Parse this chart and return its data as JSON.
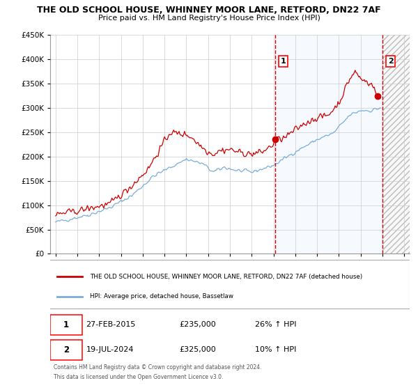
{
  "title": "THE OLD SCHOOL HOUSE, WHINNEY MOOR LANE, RETFORD, DN22 7AF",
  "subtitle": "Price paid vs. HM Land Registry's House Price Index (HPI)",
  "ylim": [
    0,
    450000
  ],
  "yticks": [
    0,
    50000,
    100000,
    150000,
    200000,
    250000,
    300000,
    350000,
    400000,
    450000
  ],
  "red_line_color": "#cc0000",
  "blue_line_color": "#7aaddc",
  "shade_color": "#ddeeff",
  "hatch_color": "#dddddd",
  "legend_line1": "THE OLD SCHOOL HOUSE, WHINNEY MOOR LANE, RETFORD, DN22 7AF (detached house)",
  "legend_line2": "HPI: Average price, detached house, Bassetlaw",
  "point1_x": 2015.15,
  "point1_y": 235000,
  "point2_x": 2024.55,
  "point2_y": 325000,
  "vline2_x": 2025.0,
  "footer1": "Contains HM Land Registry data © Crown copyright and database right 2024.",
  "footer2": "This data is licensed under the Open Government Licence v3.0.",
  "table_row1": [
    "1",
    "27-FEB-2015",
    "£235,000",
    "26% ↑ HPI"
  ],
  "table_row2": [
    "2",
    "19-JUL-2024",
    "£325,000",
    "10% ↑ HPI"
  ],
  "xlim": [
    1994.5,
    2027.5
  ],
  "xticks": [
    1995,
    1997,
    1999,
    2001,
    2003,
    2005,
    2007,
    2009,
    2011,
    2013,
    2015,
    2017,
    2019,
    2021,
    2023,
    2025,
    2027
  ],
  "grid_color": "#cccccc",
  "bg_color": "#ffffff"
}
